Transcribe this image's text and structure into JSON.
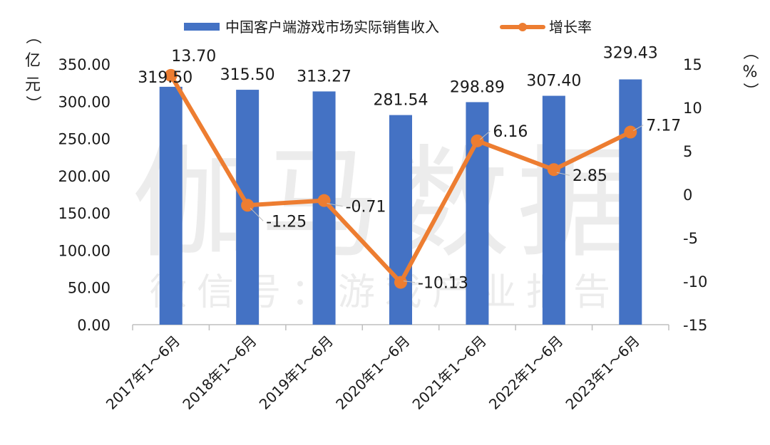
{
  "chart_data": {
    "type": "bar+line",
    "categories": [
      "2017年1～6月",
      "2018年1～6月",
      "2019年1～6月",
      "2020年1～6月",
      "2021年1～6月",
      "2022年1～6月",
      "2023年1～6月"
    ],
    "series": [
      {
        "name": "中国客户端游戏市场实际销售收入",
        "type": "bar",
        "axis": "left",
        "color": "#4472C4",
        "values": [
          319.5,
          315.5,
          313.27,
          281.54,
          298.89,
          307.4,
          329.43
        ],
        "labels": [
          "319.50",
          "315.50",
          "313.27",
          "281.54",
          "298.89",
          "307.40",
          "329.43"
        ]
      },
      {
        "name": "增长率",
        "type": "line",
        "axis": "right",
        "color": "#ED7D31",
        "values": [
          13.7,
          -1.25,
          -0.71,
          -10.13,
          6.16,
          2.85,
          7.17
        ],
        "labels": [
          "13.70",
          "-1.25",
          "-0.71",
          "-10.13",
          "6.16",
          "2.85",
          "7.17"
        ]
      }
    ],
    "y_left": {
      "label": "（亿元）",
      "ylim": [
        0,
        350
      ],
      "ticks": [
        "0.00",
        "50.00",
        "100.00",
        "150.00",
        "200.00",
        "250.00",
        "300.00",
        "350.00"
      ]
    },
    "y_right": {
      "label": "（%）",
      "ylim": [
        -15,
        15
      ],
      "ticks": [
        "-15",
        "-10",
        "-5",
        "0",
        "5",
        "10",
        "15"
      ]
    },
    "legend_position": "top",
    "grid": false,
    "watermark": {
      "main": "伽马数据",
      "sub": "微信号：游戏产业报告"
    }
  }
}
